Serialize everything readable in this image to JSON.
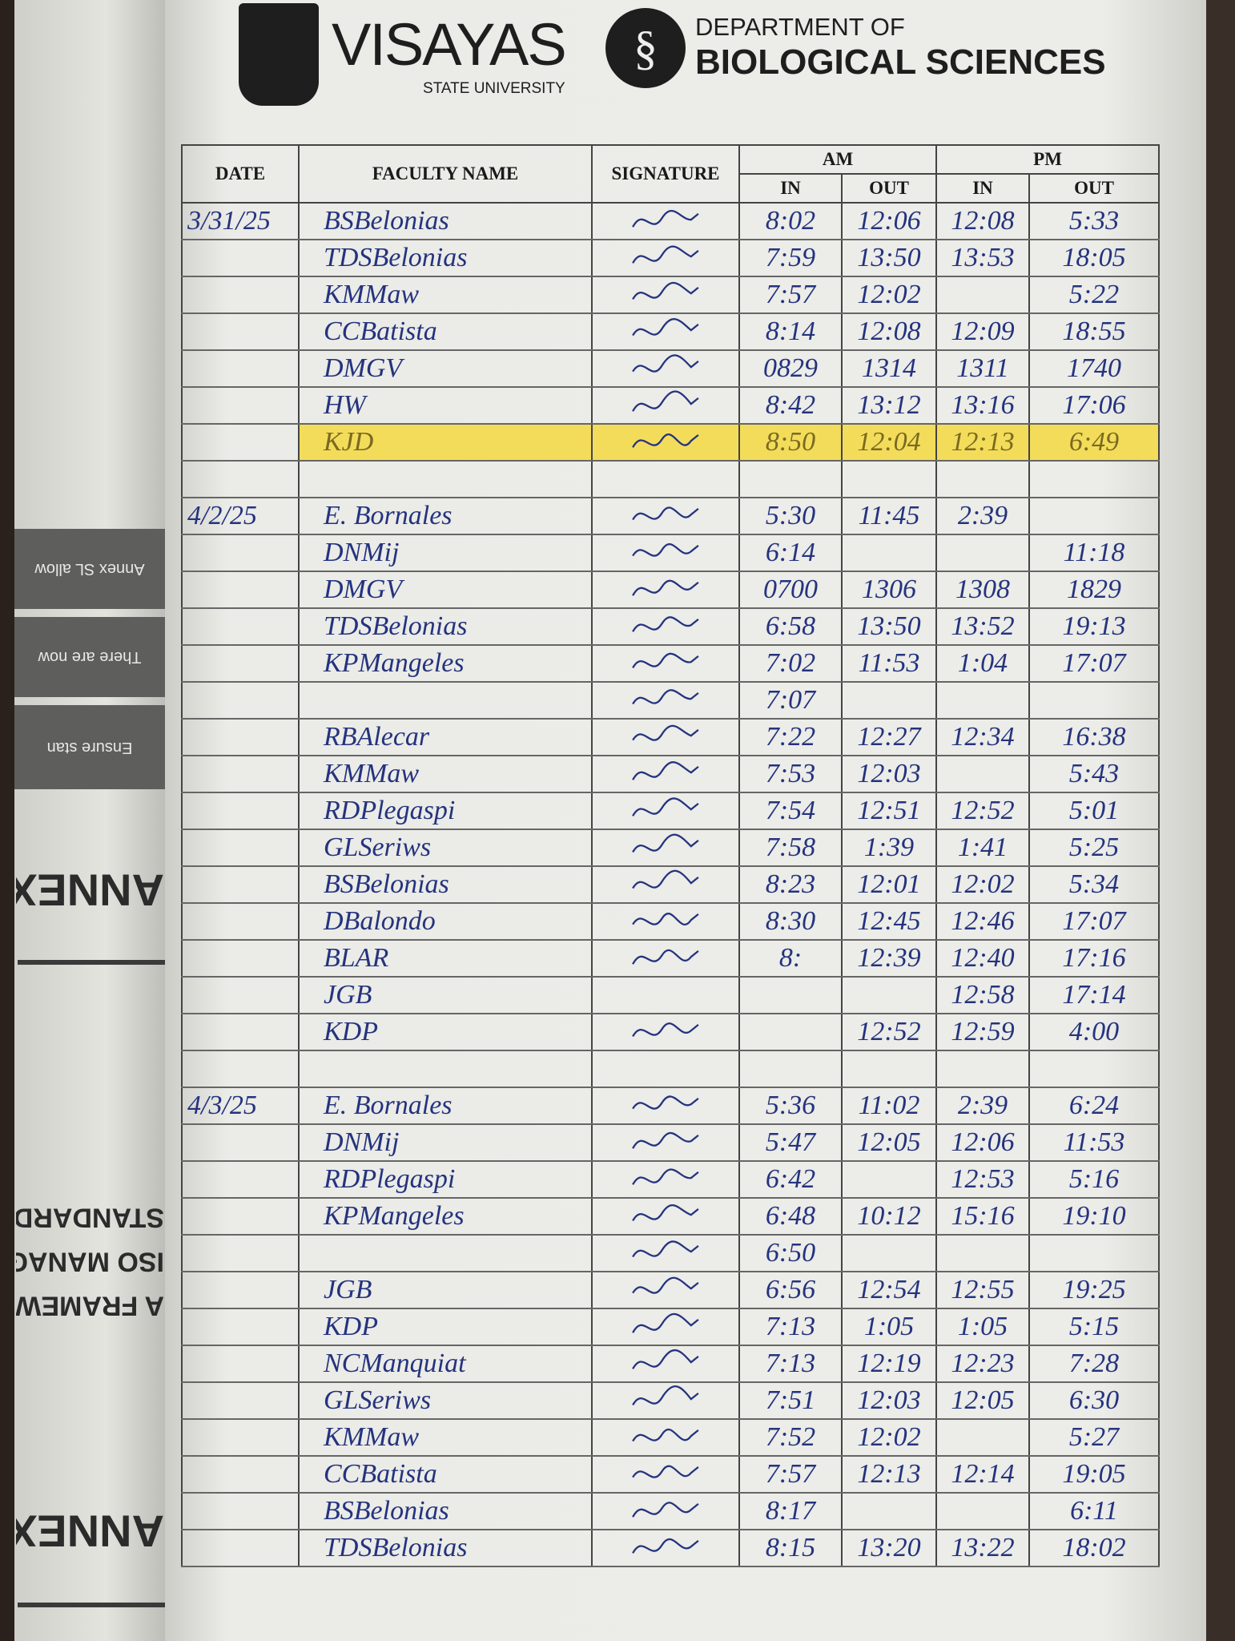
{
  "header": {
    "university": "VISAYAS",
    "university_sub": "STATE UNIVERSITY",
    "department_line1": "DEPARTMENT OF",
    "department_line2": "BIOLOGICAL SCIENCES"
  },
  "left_page": {
    "bands": [
      "Annex SL allow",
      "There are now",
      "Ensure stan"
    ],
    "titles": [
      "ANNEX SL",
      "STANDARDS PRO",
      "ISO MANAGEME",
      "A FRAMEWORK F",
      "ANNEX SL"
    ]
  },
  "table": {
    "columns": {
      "date": "DATE",
      "name": "FACULTY NAME",
      "signature": "SIGNATURE",
      "am": "AM",
      "pm": "PM",
      "in": "IN",
      "out": "OUT"
    },
    "highlight_color": "#f3dc5a",
    "ink_color": "#24337e",
    "rows": [
      {
        "date": "3/31/25",
        "name": "BSBelonias",
        "am_in": "8:02",
        "am_out": "12:06",
        "pm_in": "12:08",
        "pm_out": "5:33",
        "signed": true
      },
      {
        "date": "",
        "name": "TDSBelonias",
        "am_in": "7:59",
        "am_out": "13:50",
        "pm_in": "13:53",
        "pm_out": "18:05",
        "signed": true
      },
      {
        "date": "",
        "name": "KMMaw",
        "am_in": "7:57",
        "am_out": "12:02",
        "pm_in": "",
        "pm_out": "5:22",
        "signed": true
      },
      {
        "date": "",
        "name": "CCBatista",
        "am_in": "8:14",
        "am_out": "12:08",
        "pm_in": "12:09",
        "pm_out": "18:55",
        "signed": true
      },
      {
        "date": "",
        "name": "DMGV",
        "am_in": "0829",
        "am_out": "1314",
        "pm_in": "1311",
        "pm_out": "1740",
        "signed": true
      },
      {
        "date": "",
        "name": "HW",
        "am_in": "8:42",
        "am_out": "13:12",
        "pm_in": "13:16",
        "pm_out": "17:06",
        "signed": true
      },
      {
        "date": "",
        "name": "KJD",
        "am_in": "8:50",
        "am_out": "12:04",
        "pm_in": "12:13",
        "pm_out": "6:49",
        "signed": true,
        "highlighted": true
      },
      {
        "date": "",
        "name": "",
        "am_in": "",
        "am_out": "",
        "pm_in": "",
        "pm_out": "",
        "signed": false
      },
      {
        "date": "4/2/25",
        "name": "E. Bornales",
        "am_in": "5:30",
        "am_out": "11:45",
        "pm_in": "2:39",
        "pm_out": "",
        "signed": true
      },
      {
        "date": "",
        "name": "DNMij",
        "am_in": "6:14",
        "am_out": "",
        "pm_in": "",
        "pm_out": "11:18",
        "signed": true
      },
      {
        "date": "",
        "name": "DMGV",
        "am_in": "0700",
        "am_out": "1306",
        "pm_in": "1308",
        "pm_out": "1829",
        "signed": true
      },
      {
        "date": "",
        "name": "TDSBelonias",
        "am_in": "6:58",
        "am_out": "13:50",
        "pm_in": "13:52",
        "pm_out": "19:13",
        "signed": true
      },
      {
        "date": "",
        "name": "KPMangeles",
        "am_in": "7:02",
        "am_out": "11:53",
        "pm_in": "1:04",
        "pm_out": "17:07",
        "signed": true
      },
      {
        "date": "",
        "name": "",
        "am_in": "7:07",
        "am_out": "",
        "pm_in": "",
        "pm_out": "",
        "signed": true
      },
      {
        "date": "",
        "name": "RBAlecar",
        "am_in": "7:22",
        "am_out": "12:27",
        "pm_in": "12:34",
        "pm_out": "16:38",
        "signed": true
      },
      {
        "date": "",
        "name": "KMMaw",
        "am_in": "7:53",
        "am_out": "12:03",
        "pm_in": "",
        "pm_out": "5:43",
        "signed": true
      },
      {
        "date": "",
        "name": "RDPlegaspi",
        "am_in": "7:54",
        "am_out": "12:51",
        "pm_in": "12:52",
        "pm_out": "5:01",
        "signed": true
      },
      {
        "date": "",
        "name": "GLSeriws",
        "am_in": "7:58",
        "am_out": "1:39",
        "pm_in": "1:41",
        "pm_out": "5:25",
        "signed": true
      },
      {
        "date": "",
        "name": "BSBelonias",
        "am_in": "8:23",
        "am_out": "12:01",
        "pm_in": "12:02",
        "pm_out": "5:34",
        "signed": true
      },
      {
        "date": "",
        "name": "DBalondo",
        "am_in": "8:30",
        "am_out": "12:45",
        "pm_in": "12:46",
        "pm_out": "17:07",
        "signed": true
      },
      {
        "date": "",
        "name": "BLAR",
        "am_in": "8:",
        "am_out": "12:39",
        "pm_in": "12:40",
        "pm_out": "17:16",
        "signed": true
      },
      {
        "date": "",
        "name": "JGB",
        "am_in": "",
        "am_out": "",
        "pm_in": "12:58",
        "pm_out": "17:14",
        "signed": false
      },
      {
        "date": "",
        "name": "KDP",
        "am_in": "",
        "am_out": "12:52",
        "pm_in": "12:59",
        "pm_out": "4:00",
        "signed": true
      },
      {
        "date": "",
        "name": "",
        "am_in": "",
        "am_out": "",
        "pm_in": "",
        "pm_out": "",
        "signed": false
      },
      {
        "date": "4/3/25",
        "name": "E. Bornales",
        "am_in": "5:36",
        "am_out": "11:02",
        "pm_in": "2:39",
        "pm_out": "6:24",
        "signed": true
      },
      {
        "date": "",
        "name": "DNMij",
        "am_in": "5:47",
        "am_out": "12:05",
        "pm_in": "12:06",
        "pm_out": "11:53",
        "signed": true
      },
      {
        "date": "",
        "name": "RDPlegaspi",
        "am_in": "6:42",
        "am_out": "",
        "pm_in": "12:53",
        "pm_out": "5:16",
        "signed": true
      },
      {
        "date": "",
        "name": "KPMangeles",
        "am_in": "6:48",
        "am_out": "10:12",
        "pm_in": "15:16",
        "pm_out": "19:10",
        "signed": true
      },
      {
        "date": "",
        "name": "",
        "am_in": "6:50",
        "am_out": "",
        "pm_in": "",
        "pm_out": "",
        "signed": true
      },
      {
        "date": "",
        "name": "JGB",
        "am_in": "6:56",
        "am_out": "12:54",
        "pm_in": "12:55",
        "pm_out": "19:25",
        "signed": true
      },
      {
        "date": "",
        "name": "KDP",
        "am_in": "7:13",
        "am_out": "1:05",
        "pm_in": "1:05",
        "pm_out": "5:15",
        "signed": true
      },
      {
        "date": "",
        "name": "NCManquiat",
        "am_in": "7:13",
        "am_out": "12:19",
        "pm_in": "12:23",
        "pm_out": "7:28",
        "signed": true
      },
      {
        "date": "",
        "name": "GLSeriws",
        "am_in": "7:51",
        "am_out": "12:03",
        "pm_in": "12:05",
        "pm_out": "6:30",
        "signed": true
      },
      {
        "date": "",
        "name": "KMMaw",
        "am_in": "7:52",
        "am_out": "12:02",
        "pm_in": "",
        "pm_out": "5:27",
        "signed": true
      },
      {
        "date": "",
        "name": "CCBatista",
        "am_in": "7:57",
        "am_out": "12:13",
        "pm_in": "12:14",
        "pm_out": "19:05",
        "signed": true
      },
      {
        "date": "",
        "name": "BSBelonias",
        "am_in": "8:17",
        "am_out": "",
        "pm_in": "",
        "pm_out": "6:11",
        "signed": true
      },
      {
        "date": "",
        "name": "TDSBelonias",
        "am_in": "8:15",
        "am_out": "13:20",
        "pm_in": "13:22",
        "pm_out": "18:02",
        "signed": true
      }
    ]
  }
}
